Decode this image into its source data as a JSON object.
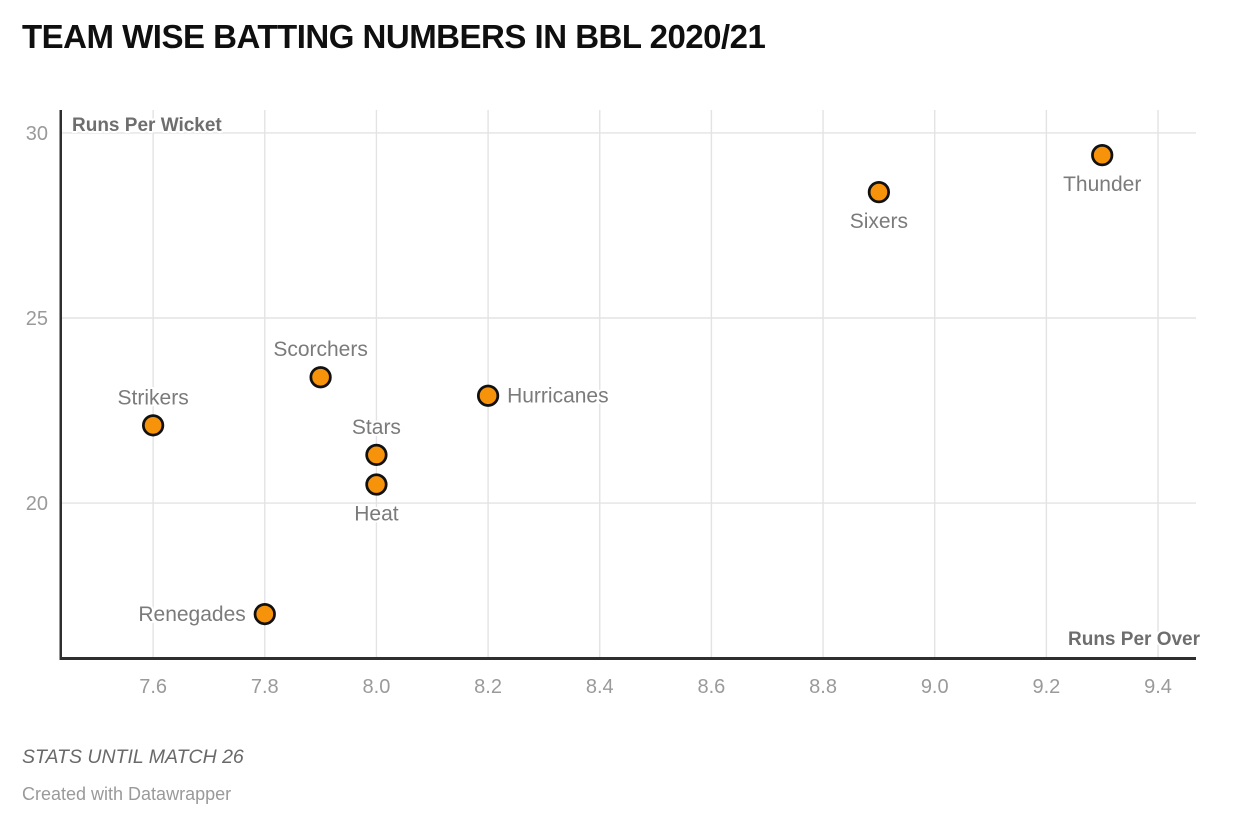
{
  "title": "TEAM WISE BATTING NUMBERS IN BBL 2020/21",
  "footer": {
    "note": "STATS UNTIL MATCH 26",
    "attribution": "Created with Datawrapper"
  },
  "chart_data": {
    "type": "scatter",
    "title": "TEAM WISE BATTING NUMBERS IN BBL 2020/21",
    "xlabel": "Runs Per Over",
    "ylabel": "Runs Per Wicket",
    "x_ticks": [
      "7.6",
      "7.8",
      "8.0",
      "8.2",
      "8.4",
      "8.6",
      "8.8",
      "9.0",
      "9.2",
      "9.4"
    ],
    "y_ticks": [
      "20",
      "25",
      "30"
    ],
    "x_domain": [
      7.435,
      9.468
    ],
    "y_domain": [
      15.84,
      30.62
    ],
    "grid": true,
    "legend": "none",
    "points": [
      {
        "name": "Thunder",
        "x": 9.3,
        "y": 29.4,
        "label_pos": "below"
      },
      {
        "name": "Sixers",
        "x": 8.9,
        "y": 28.4,
        "label_pos": "below"
      },
      {
        "name": "Scorchers",
        "x": 7.9,
        "y": 23.4,
        "label_pos": "above"
      },
      {
        "name": "Hurricanes",
        "x": 8.2,
        "y": 22.9,
        "label_pos": "right"
      },
      {
        "name": "Strikers",
        "x": 7.6,
        "y": 22.1,
        "label_pos": "above"
      },
      {
        "name": "Stars",
        "x": 8.0,
        "y": 21.3,
        "label_pos": "above"
      },
      {
        "name": "Heat",
        "x": 8.0,
        "y": 20.5,
        "label_pos": "below"
      },
      {
        "name": "Renegades",
        "x": 7.8,
        "y": 17.0,
        "label_pos": "left"
      }
    ],
    "colors": {
      "dot_fill": "#F7920B",
      "dot_stroke": "#111111",
      "grid": "#E3E3E3",
      "axis": "#2F2F2F",
      "tick_label": "#9A9A9A",
      "axis_title": "#6E6E6E",
      "point_label": "#7B7B7B",
      "title": "#0F0F0F"
    }
  }
}
